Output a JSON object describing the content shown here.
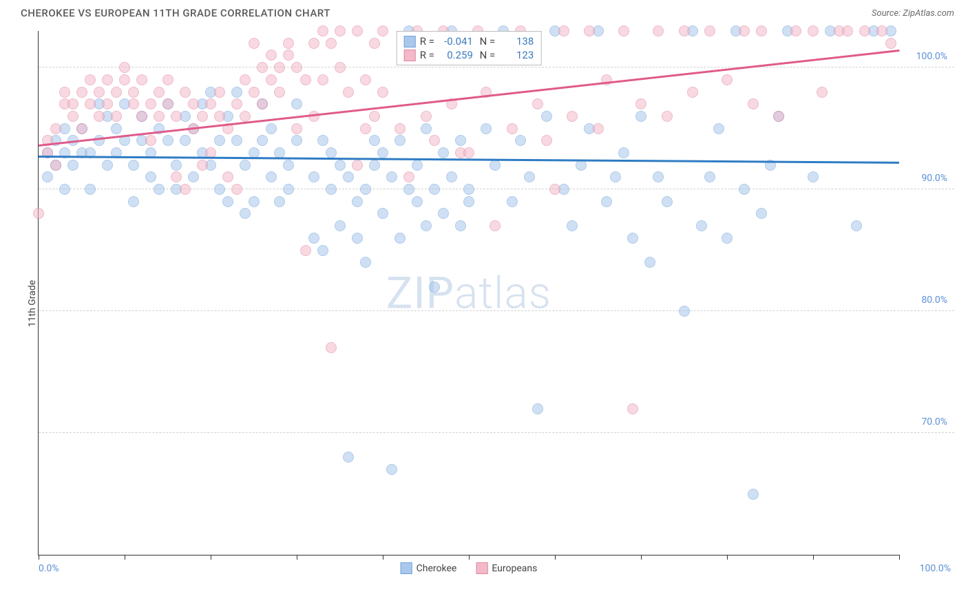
{
  "title": "CHEROKEE VS EUROPEAN 11TH GRADE CORRELATION CHART",
  "source": "Source: ZipAtlas.com",
  "watermark": "ZIPatlas",
  "yaxis_title": "11th Grade",
  "chart": {
    "type": "scatter",
    "xlim": [
      0,
      100
    ],
    "ylim": [
      60,
      103
    ],
    "x_ticks": [
      0,
      10,
      20,
      30,
      40,
      50,
      60,
      70,
      80,
      90,
      100
    ],
    "y_grid": [
      70,
      80,
      90,
      100
    ],
    "y_tick_labels": [
      "70.0%",
      "80.0%",
      "90.0%",
      "100.0%"
    ],
    "x_tick_labels": {
      "0": "0.0%",
      "100": "100.0%"
    },
    "background_color": "#ffffff",
    "grid_color": "#d0d0d0",
    "marker_radius": 8,
    "marker_opacity": 0.55,
    "series": [
      {
        "name": "Cherokee",
        "fill": "#a9c8ec",
        "stroke": "#6fa0d8",
        "line_color": "#2f7cc4",
        "R": "-0.041",
        "N": "138",
        "trend": {
          "x1": 0,
          "y1": 92.8,
          "x2": 100,
          "y2": 92.3
        },
        "points": [
          [
            1,
            93
          ],
          [
            1,
            91
          ],
          [
            2,
            92
          ],
          [
            2,
            94
          ],
          [
            3,
            93
          ],
          [
            3,
            95
          ],
          [
            3,
            90
          ],
          [
            4,
            94
          ],
          [
            4,
            92
          ],
          [
            5,
            93
          ],
          [
            5,
            95
          ],
          [
            6,
            90
          ],
          [
            6,
            93
          ],
          [
            7,
            97
          ],
          [
            7,
            94
          ],
          [
            8,
            92
          ],
          [
            8,
            96
          ],
          [
            9,
            93
          ],
          [
            9,
            95
          ],
          [
            10,
            97
          ],
          [
            10,
            94
          ],
          [
            11,
            92
          ],
          [
            11,
            89
          ],
          [
            12,
            94
          ],
          [
            12,
            96
          ],
          [
            13,
            93
          ],
          [
            13,
            91
          ],
          [
            14,
            95
          ],
          [
            14,
            90
          ],
          [
            15,
            97
          ],
          [
            15,
            94
          ],
          [
            16,
            90
          ],
          [
            16,
            92
          ],
          [
            17,
            94
          ],
          [
            17,
            96
          ],
          [
            18,
            95
          ],
          [
            18,
            91
          ],
          [
            19,
            97
          ],
          [
            19,
            93
          ],
          [
            20,
            98
          ],
          [
            20,
            92
          ],
          [
            21,
            90
          ],
          [
            21,
            94
          ],
          [
            22,
            89
          ],
          [
            22,
            96
          ],
          [
            23,
            98
          ],
          [
            23,
            94
          ],
          [
            24,
            92
          ],
          [
            24,
            88
          ],
          [
            25,
            89
          ],
          [
            25,
            93
          ],
          [
            26,
            94
          ],
          [
            26,
            97
          ],
          [
            27,
            91
          ],
          [
            27,
            95
          ],
          [
            28,
            93
          ],
          [
            28,
            89
          ],
          [
            29,
            90
          ],
          [
            29,
            92
          ],
          [
            30,
            94
          ],
          [
            30,
            97
          ],
          [
            32,
            86
          ],
          [
            32,
            91
          ],
          [
            33,
            85
          ],
          [
            33,
            94
          ],
          [
            34,
            93
          ],
          [
            34,
            90
          ],
          [
            35,
            87
          ],
          [
            35,
            92
          ],
          [
            36,
            68
          ],
          [
            36,
            91
          ],
          [
            37,
            86
          ],
          [
            37,
            89
          ],
          [
            38,
            90
          ],
          [
            38,
            84
          ],
          [
            39,
            94
          ],
          [
            39,
            92
          ],
          [
            40,
            88
          ],
          [
            40,
            93
          ],
          [
            41,
            67
          ],
          [
            41,
            91
          ],
          [
            42,
            86
          ],
          [
            42,
            94
          ],
          [
            43,
            90
          ],
          [
            43,
            103
          ],
          [
            44,
            89
          ],
          [
            44,
            92
          ],
          [
            45,
            87
          ],
          [
            45,
            95
          ],
          [
            46,
            82
          ],
          [
            46,
            90
          ],
          [
            47,
            88
          ],
          [
            47,
            93
          ],
          [
            48,
            103
          ],
          [
            48,
            91
          ],
          [
            49,
            87
          ],
          [
            49,
            94
          ],
          [
            50,
            90
          ],
          [
            50,
            89
          ],
          [
            52,
            95
          ],
          [
            53,
            92
          ],
          [
            54,
            103
          ],
          [
            55,
            89
          ],
          [
            56,
            94
          ],
          [
            57,
            91
          ],
          [
            58,
            72
          ],
          [
            59,
            96
          ],
          [
            60,
            103
          ],
          [
            61,
            90
          ],
          [
            62,
            87
          ],
          [
            63,
            92
          ],
          [
            64,
            95
          ],
          [
            65,
            103
          ],
          [
            66,
            89
          ],
          [
            67,
            91
          ],
          [
            68,
            93
          ],
          [
            69,
            86
          ],
          [
            70,
            96
          ],
          [
            71,
            84
          ],
          [
            72,
            91
          ],
          [
            73,
            89
          ],
          [
            75,
            80
          ],
          [
            76,
            103
          ],
          [
            77,
            87
          ],
          [
            78,
            91
          ],
          [
            79,
            95
          ],
          [
            80,
            86
          ],
          [
            81,
            103
          ],
          [
            82,
            90
          ],
          [
            83,
            65
          ],
          [
            84,
            88
          ],
          [
            85,
            92
          ],
          [
            86,
            96
          ],
          [
            87,
            103
          ],
          [
            90,
            91
          ],
          [
            92,
            103
          ],
          [
            95,
            87
          ],
          [
            97,
            103
          ],
          [
            99,
            103
          ]
        ]
      },
      {
        "name": "Europeans",
        "fill": "#f4b9c9",
        "stroke": "#e083a0",
        "line_color": "#e05a8a",
        "R": "0.259",
        "N": "123",
        "trend": {
          "x1": 0,
          "y1": 93.7,
          "x2": 100,
          "y2": 101.5
        },
        "points": [
          [
            0,
            88
          ],
          [
            1,
            93
          ],
          [
            1,
            94
          ],
          [
            2,
            92
          ],
          [
            2,
            95
          ],
          [
            3,
            97
          ],
          [
            3,
            98
          ],
          [
            4,
            96
          ],
          [
            4,
            97
          ],
          [
            5,
            98
          ],
          [
            5,
            95
          ],
          [
            6,
            99
          ],
          [
            6,
            97
          ],
          [
            7,
            98
          ],
          [
            7,
            96
          ],
          [
            8,
            99
          ],
          [
            8,
            97
          ],
          [
            9,
            98
          ],
          [
            9,
            96
          ],
          [
            10,
            99
          ],
          [
            10,
            100
          ],
          [
            11,
            98
          ],
          [
            11,
            97
          ],
          [
            12,
            99
          ],
          [
            12,
            96
          ],
          [
            13,
            94
          ],
          [
            13,
            97
          ],
          [
            14,
            98
          ],
          [
            14,
            96
          ],
          [
            15,
            99
          ],
          [
            15,
            97
          ],
          [
            16,
            91
          ],
          [
            16,
            96
          ],
          [
            17,
            90
          ],
          [
            17,
            98
          ],
          [
            18,
            95
          ],
          [
            18,
            97
          ],
          [
            19,
            96
          ],
          [
            19,
            92
          ],
          [
            20,
            93
          ],
          [
            20,
            97
          ],
          [
            21,
            96
          ],
          [
            21,
            98
          ],
          [
            22,
            95
          ],
          [
            22,
            91
          ],
          [
            23,
            90
          ],
          [
            23,
            97
          ],
          [
            24,
            96
          ],
          [
            24,
            99
          ],
          [
            25,
            98
          ],
          [
            25,
            102
          ],
          [
            26,
            100
          ],
          [
            26,
            97
          ],
          [
            27,
            99
          ],
          [
            27,
            101
          ],
          [
            28,
            100
          ],
          [
            28,
            98
          ],
          [
            29,
            101
          ],
          [
            29,
            102
          ],
          [
            30,
            95
          ],
          [
            30,
            100
          ],
          [
            31,
            85
          ],
          [
            31,
            99
          ],
          [
            32,
            96
          ],
          [
            32,
            102
          ],
          [
            33,
            99
          ],
          [
            33,
            103
          ],
          [
            34,
            77
          ],
          [
            34,
            102
          ],
          [
            35,
            100
          ],
          [
            35,
            103
          ],
          [
            36,
            98
          ],
          [
            37,
            92
          ],
          [
            37,
            103
          ],
          [
            38,
            99
          ],
          [
            38,
            95
          ],
          [
            39,
            96
          ],
          [
            39,
            102
          ],
          [
            40,
            103
          ],
          [
            40,
            98
          ],
          [
            42,
            95
          ],
          [
            43,
            91
          ],
          [
            44,
            103
          ],
          [
            45,
            96
          ],
          [
            46,
            94
          ],
          [
            47,
            103
          ],
          [
            48,
            97
          ],
          [
            49,
            93
          ],
          [
            50,
            93
          ],
          [
            51,
            103
          ],
          [
            52,
            98
          ],
          [
            53,
            87
          ],
          [
            55,
            95
          ],
          [
            56,
            103
          ],
          [
            58,
            97
          ],
          [
            59,
            94
          ],
          [
            60,
            90
          ],
          [
            61,
            103
          ],
          [
            62,
            96
          ],
          [
            64,
            103
          ],
          [
            65,
            95
          ],
          [
            66,
            99
          ],
          [
            68,
            103
          ],
          [
            69,
            72
          ],
          [
            70,
            97
          ],
          [
            72,
            103
          ],
          [
            73,
            96
          ],
          [
            75,
            103
          ],
          [
            76,
            98
          ],
          [
            78,
            103
          ],
          [
            80,
            99
          ],
          [
            82,
            103
          ],
          [
            83,
            97
          ],
          [
            84,
            103
          ],
          [
            86,
            96
          ],
          [
            88,
            103
          ],
          [
            90,
            103
          ],
          [
            91,
            98
          ],
          [
            93,
            103
          ],
          [
            94,
            103
          ],
          [
            96,
            103
          ],
          [
            98,
            103
          ],
          [
            99,
            102
          ]
        ]
      }
    ]
  }
}
